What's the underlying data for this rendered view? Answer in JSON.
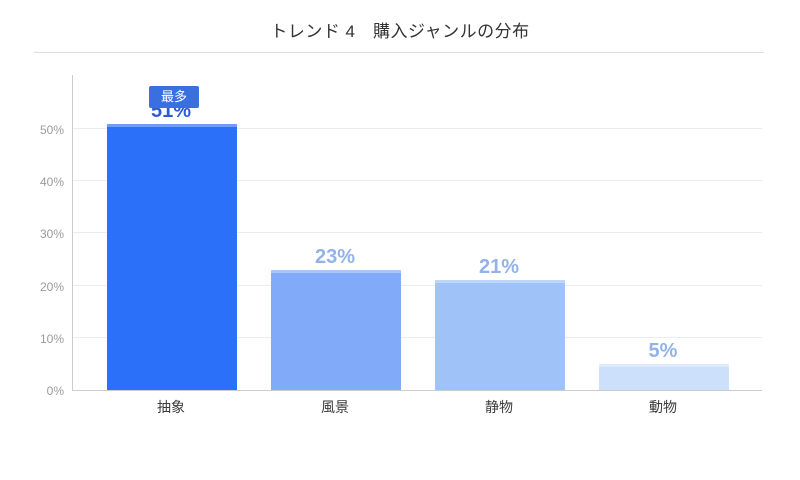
{
  "title": "トレンド 4　購入ジャンルの分布",
  "badge": {
    "label": "最多",
    "bg_color": "#3a6fe0",
    "text_color": "#ffffff"
  },
  "chart_data": {
    "type": "bar",
    "title": "トレンド 4　購入ジャンルの分布",
    "categories": [
      "抽象",
      "風景",
      "静物",
      "動物"
    ],
    "values": [
      51,
      23,
      21,
      5
    ],
    "value_labels": [
      "51%",
      "23%",
      "21%",
      "5%"
    ],
    "bar_colors": [
      "#2a70f8",
      "#81abf8",
      "#9fc3f9",
      "#cde0fb"
    ],
    "value_label_colors": [
      "#2d5bd3",
      "#92b3ea",
      "#92b3ea",
      "#92b3ea"
    ],
    "xlabel": "",
    "ylabel": "",
    "ylim": [
      0,
      55
    ],
    "yticks": [
      "0%",
      "10%",
      "20%",
      "30%",
      "40%",
      "50%"
    ],
    "grid": true,
    "legend": "none",
    "annotation": {
      "text": "最多",
      "target_category": "抽象"
    }
  }
}
